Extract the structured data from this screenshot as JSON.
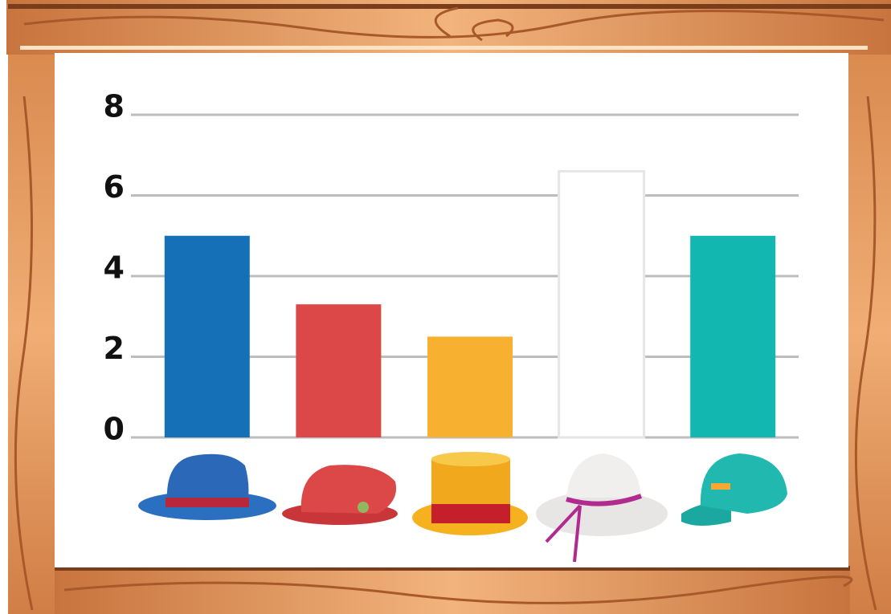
{
  "chart_data": {
    "type": "bar",
    "categories": [
      null,
      null,
      null,
      null,
      null
    ],
    "values": [
      5,
      3.3,
      2.5,
      6.6,
      5
    ],
    "colors": [
      "#1570b8",
      "#dc4748",
      "#f8b030",
      "#ffffff",
      "#12b8b0"
    ],
    "ylim": [
      0,
      8
    ],
    "yticks": [
      0,
      2,
      4,
      6,
      8
    ],
    "grid": true
  }
}
